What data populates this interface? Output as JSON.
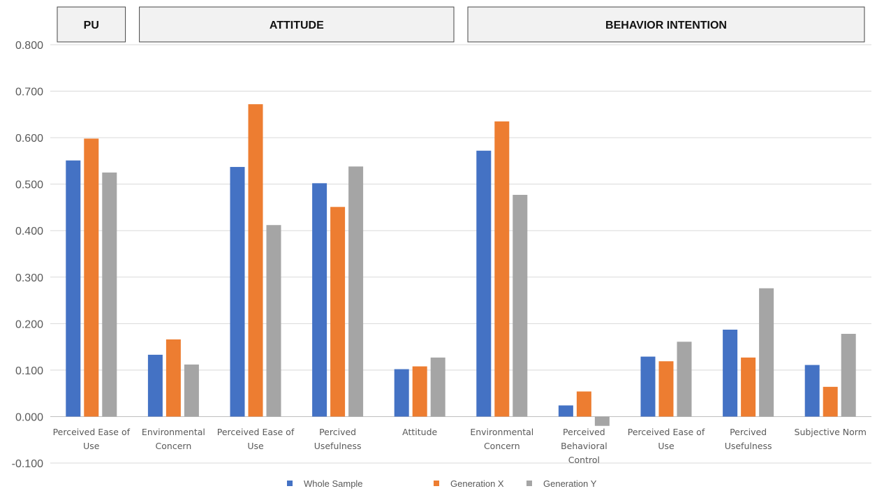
{
  "chart_data": {
    "type": "bar",
    "title": "",
    "xlabel": "",
    "ylabel": "",
    "ylim": [
      -0.1,
      0.8
    ],
    "yticks": [
      0.8,
      0.7,
      0.6,
      0.5,
      0.4,
      0.3,
      0.2,
      0.1,
      0.0,
      -0.1
    ],
    "ytick_labels": [
      "0.800",
      "0.700",
      "0.600",
      "0.500",
      "0.400",
      "0.300",
      "0.200",
      "0.100",
      "0.000",
      "-0.100"
    ],
    "grid": true,
    "legend_position": "bottom",
    "groups": [
      {
        "label": "PU",
        "span": [
          0,
          0
        ]
      },
      {
        "label": "ATTITUDE",
        "span": [
          1,
          4
        ]
      },
      {
        "label": "BEHAVIOR INTENTION",
        "span": [
          5,
          9
        ]
      }
    ],
    "categories": [
      [
        "Perceived Ease of",
        "Use"
      ],
      [
        "Environmental",
        "Concern"
      ],
      [
        "Perceived Ease of",
        "Use"
      ],
      [
        "Percived",
        "Usefulness"
      ],
      [
        "Attitude"
      ],
      [
        "Environmental",
        "Concern"
      ],
      [
        "Perceived",
        "Behavioral",
        "Control"
      ],
      [
        "Perceived Ease of",
        "Use"
      ],
      [
        "Percived",
        "Usefulness"
      ],
      [
        "Subjective Norm"
      ]
    ],
    "series": [
      {
        "name": "Whole Sample",
        "color": "#4472C4",
        "values": [
          0.551,
          0.133,
          0.537,
          0.502,
          0.102,
          0.572,
          0.024,
          0.129,
          0.187,
          0.111
        ]
      },
      {
        "name": "Generation X",
        "color": "#ED7D31",
        "values": [
          0.598,
          0.166,
          0.672,
          0.451,
          0.108,
          0.635,
          0.054,
          0.119,
          0.127,
          0.064
        ]
      },
      {
        "name": "Generation Y",
        "color": "#A5A5A5",
        "values": [
          0.525,
          0.112,
          0.412,
          0.538,
          0.127,
          0.477,
          -0.02,
          0.161,
          0.276,
          0.178
        ]
      }
    ]
  }
}
